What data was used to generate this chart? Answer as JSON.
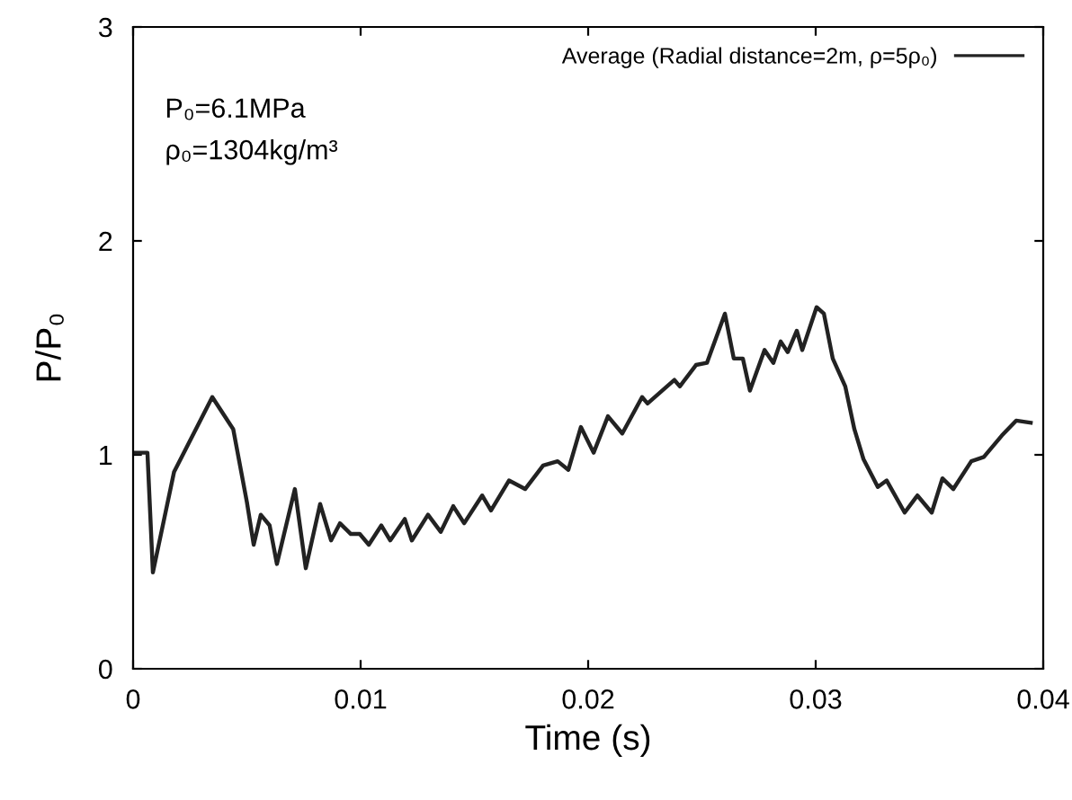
{
  "chart_data": {
    "type": "line",
    "xlabel": "Time (s)",
    "ylabel": "P/P₀",
    "annotations": [
      "P₀=6.1MPa",
      "ρ₀=1304kg/m³"
    ],
    "xlim": [
      0,
      0.04
    ],
    "xticks": [
      0,
      0.01,
      0.02,
      0.03,
      0.04
    ],
    "ylim": [
      0,
      3
    ],
    "yticks": [
      0,
      1,
      2,
      3
    ],
    "grid": false,
    "legend": "top right",
    "line_style": "solid",
    "marker": "none",
    "series": [
      {
        "name": "Average (Radial distance=2m, ρ=5ρ₀)",
        "color": "#222222",
        "x": [
          0,
          0.00063,
          0.00087,
          0.0018,
          0.00348,
          0.0044,
          0.005,
          0.0053,
          0.00561,
          0.006,
          0.00632,
          0.00711,
          0.00759,
          0.00822,
          0.0087,
          0.00909,
          0.00957,
          0.00996,
          0.01036,
          0.01091,
          0.0113,
          0.01194,
          0.01225,
          0.01296,
          0.01352,
          0.01407,
          0.01455,
          0.01534,
          0.01573,
          0.01652,
          0.01723,
          0.01802,
          0.01866,
          0.01913,
          0.01968,
          0.02024,
          0.02087,
          0.0215,
          0.02237,
          0.02261,
          0.02379,
          0.02403,
          0.02474,
          0.02522,
          0.02601,
          0.0264,
          0.0268,
          0.02711,
          0.02775,
          0.02814,
          0.02846,
          0.02877,
          0.02917,
          0.02941,
          0.03004,
          0.03036,
          0.03075,
          0.0313,
          0.0317,
          0.0321,
          0.03273,
          0.03312,
          0.03391,
          0.03447,
          0.0351,
          0.03557,
          0.03605,
          0.03684,
          0.03739,
          0.03818,
          0.03881,
          0.03945
        ],
        "values": [
          1.01,
          1.01,
          0.45,
          0.92,
          1.27,
          1.12,
          0.78,
          0.58,
          0.72,
          0.67,
          0.49,
          0.84,
          0.47,
          0.77,
          0.6,
          0.68,
          0.63,
          0.63,
          0.58,
          0.67,
          0.6,
          0.7,
          0.6,
          0.72,
          0.64,
          0.76,
          0.68,
          0.81,
          0.74,
          0.88,
          0.84,
          0.95,
          0.97,
          0.93,
          1.13,
          1.01,
          1.18,
          1.1,
          1.27,
          1.24,
          1.35,
          1.32,
          1.42,
          1.43,
          1.66,
          1.45,
          1.45,
          1.3,
          1.49,
          1.43,
          1.53,
          1.48,
          1.58,
          1.49,
          1.69,
          1.66,
          1.45,
          1.32,
          1.12,
          0.98,
          0.85,
          0.88,
          0.73,
          0.81,
          0.73,
          0.89,
          0.84,
          0.97,
          0.99,
          1.09,
          1.16,
          1.15
        ]
      }
    ]
  }
}
